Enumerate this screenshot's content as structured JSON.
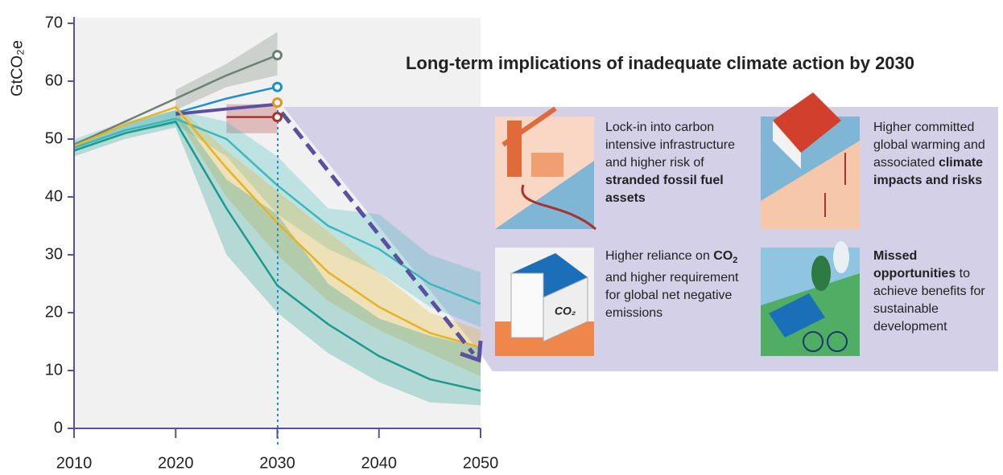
{
  "chart_data": {
    "type": "line",
    "ylabel": "GtCO₂e",
    "x": [
      2010,
      2015,
      2020,
      2025,
      2030,
      2035,
      2040,
      2045,
      2050
    ],
    "xlim": [
      2010,
      2050
    ],
    "xticks": [
      2010,
      2020,
      2030,
      2040,
      2050
    ],
    "ylim": [
      0,
      70
    ],
    "yticks": [
      0,
      10,
      20,
      30,
      40,
      50,
      60,
      70
    ],
    "series": [
      {
        "color": "#6e7f74",
        "marker": "end",
        "values": [
          49,
          53,
          57,
          61,
          64.5,
          null,
          null,
          null,
          null
        ],
        "lower": [
          null,
          null,
          55,
          59,
          61,
          null,
          null,
          null,
          null
        ],
        "upper": [
          null,
          null,
          58.5,
          63,
          68.5,
          null,
          null,
          null,
          null
        ]
      },
      {
        "color": "#1b8fd0",
        "marker": "end",
        "values": [
          null,
          null,
          54.5,
          57,
          59,
          null,
          null,
          null,
          null
        ]
      },
      {
        "color": "#5b4fa0",
        "values": [
          null,
          null,
          54.3,
          55.2,
          56,
          null,
          null,
          null,
          null
        ]
      },
      {
        "color": "#e8901e",
        "marker": "end",
        "values": [
          null,
          null,
          null,
          null,
          56.3,
          null,
          null,
          null,
          null
        ]
      },
      {
        "color": "#a8322d",
        "marker": "end",
        "values": [
          null,
          null,
          null,
          53.8,
          53.8,
          null,
          null,
          null,
          null
        ],
        "lower": [
          null,
          null,
          null,
          51,
          51,
          null,
          null,
          null,
          null
        ],
        "upper": [
          null,
          null,
          null,
          56,
          56,
          null,
          null,
          null,
          null
        ]
      },
      {
        "color": "#3bb8bb",
        "values": [
          48.5,
          51.5,
          53.5,
          50,
          42,
          35,
          31,
          25,
          21.5
        ],
        "lower": [
          48,
          51,
          52.5,
          47,
          37,
          31,
          27,
          21,
          17.5
        ],
        "upper": [
          50,
          53,
          55,
          53,
          47,
          38,
          37,
          30,
          27
        ]
      },
      {
        "color": "#e6b422",
        "values": [
          48.8,
          52.5,
          55.5,
          45,
          35.5,
          27,
          21,
          16.5,
          14
        ],
        "lower": [
          null,
          null,
          54,
          40,
          30,
          22,
          17,
          13,
          9
        ],
        "upper": [
          null,
          null,
          56,
          48,
          41,
          34,
          27,
          20,
          17
        ]
      },
      {
        "color": "#1a9a8c",
        "values": [
          48,
          51,
          53,
          38,
          24.7,
          18,
          12.5,
          8.5,
          6.5
        ],
        "lower": [
          47,
          50,
          52,
          30,
          20,
          13,
          8,
          4.5,
          4
        ],
        "upper": [
          49.5,
          52.5,
          55,
          43,
          37,
          25,
          19,
          16,
          14
        ]
      }
    ]
  },
  "panel": {
    "title": "Long-term implications of inadequate climate action by 2030",
    "items": [
      {
        "text": [
          {
            "t": "Lock-in into carbon intensive infrastructure and higher risk of "
          },
          {
            "t": "stranded fossil fuel assets",
            "b": true
          }
        ]
      },
      {
        "text": [
          {
            "t": "Higher committed global warming and associated "
          },
          {
            "t": "climate impacts and risks",
            "b": true
          }
        ]
      },
      {
        "text": [
          {
            "t": "Higher reliance on "
          },
          {
            "t": "CO",
            "b": true
          },
          {
            "t": "2",
            "b": true,
            "sub": true
          },
          {
            "t": " and higher requirement for global net negative emissions"
          }
        ]
      },
      {
        "text": [
          {
            "t": "Missed opportunities",
            "b": true
          },
          {
            "t": " to achieve benefits for sustainable development"
          }
        ]
      }
    ]
  }
}
